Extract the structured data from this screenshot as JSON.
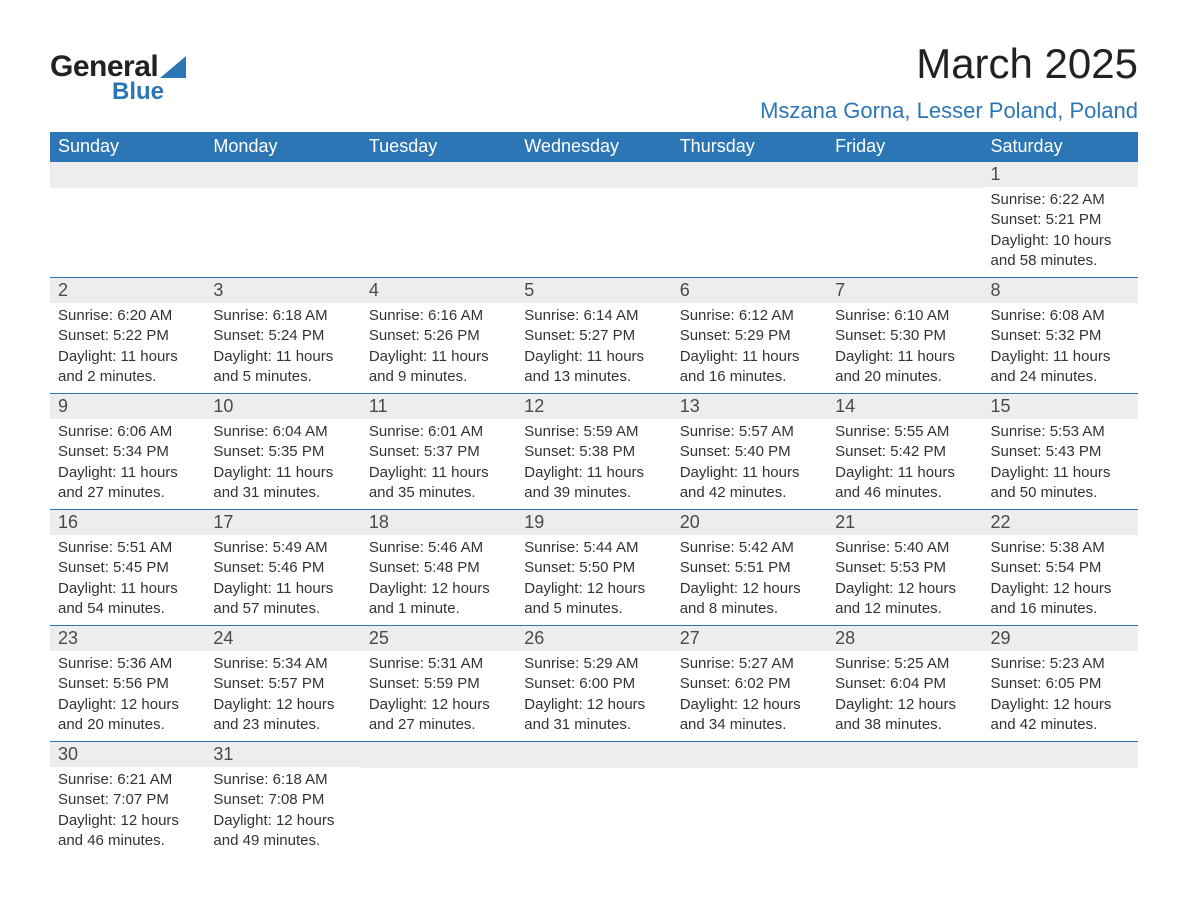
{
  "brand": {
    "word1": "General",
    "word2": "Blue"
  },
  "title": "March 2025",
  "location": "Mszana Gorna, Lesser Poland, Poland",
  "colors": {
    "header_bg": "#2d76b5",
    "header_text": "#ffffff",
    "daynum_bg": "#ededed",
    "text": "#333333",
    "accent": "#2d76b5"
  },
  "day_headers": [
    "Sunday",
    "Monday",
    "Tuesday",
    "Wednesday",
    "Thursday",
    "Friday",
    "Saturday"
  ],
  "weeks": [
    [
      null,
      null,
      null,
      null,
      null,
      null,
      {
        "n": "1",
        "sr": "Sunrise: 6:22 AM",
        "ss": "Sunset: 5:21 PM",
        "dl": "Daylight: 10 hours and 58 minutes."
      }
    ],
    [
      {
        "n": "2",
        "sr": "Sunrise: 6:20 AM",
        "ss": "Sunset: 5:22 PM",
        "dl": "Daylight: 11 hours and 2 minutes."
      },
      {
        "n": "3",
        "sr": "Sunrise: 6:18 AM",
        "ss": "Sunset: 5:24 PM",
        "dl": "Daylight: 11 hours and 5 minutes."
      },
      {
        "n": "4",
        "sr": "Sunrise: 6:16 AM",
        "ss": "Sunset: 5:26 PM",
        "dl": "Daylight: 11 hours and 9 minutes."
      },
      {
        "n": "5",
        "sr": "Sunrise: 6:14 AM",
        "ss": "Sunset: 5:27 PM",
        "dl": "Daylight: 11 hours and 13 minutes."
      },
      {
        "n": "6",
        "sr": "Sunrise: 6:12 AM",
        "ss": "Sunset: 5:29 PM",
        "dl": "Daylight: 11 hours and 16 minutes."
      },
      {
        "n": "7",
        "sr": "Sunrise: 6:10 AM",
        "ss": "Sunset: 5:30 PM",
        "dl": "Daylight: 11 hours and 20 minutes."
      },
      {
        "n": "8",
        "sr": "Sunrise: 6:08 AM",
        "ss": "Sunset: 5:32 PM",
        "dl": "Daylight: 11 hours and 24 minutes."
      }
    ],
    [
      {
        "n": "9",
        "sr": "Sunrise: 6:06 AM",
        "ss": "Sunset: 5:34 PM",
        "dl": "Daylight: 11 hours and 27 minutes."
      },
      {
        "n": "10",
        "sr": "Sunrise: 6:04 AM",
        "ss": "Sunset: 5:35 PM",
        "dl": "Daylight: 11 hours and 31 minutes."
      },
      {
        "n": "11",
        "sr": "Sunrise: 6:01 AM",
        "ss": "Sunset: 5:37 PM",
        "dl": "Daylight: 11 hours and 35 minutes."
      },
      {
        "n": "12",
        "sr": "Sunrise: 5:59 AM",
        "ss": "Sunset: 5:38 PM",
        "dl": "Daylight: 11 hours and 39 minutes."
      },
      {
        "n": "13",
        "sr": "Sunrise: 5:57 AM",
        "ss": "Sunset: 5:40 PM",
        "dl": "Daylight: 11 hours and 42 minutes."
      },
      {
        "n": "14",
        "sr": "Sunrise: 5:55 AM",
        "ss": "Sunset: 5:42 PM",
        "dl": "Daylight: 11 hours and 46 minutes."
      },
      {
        "n": "15",
        "sr": "Sunrise: 5:53 AM",
        "ss": "Sunset: 5:43 PM",
        "dl": "Daylight: 11 hours and 50 minutes."
      }
    ],
    [
      {
        "n": "16",
        "sr": "Sunrise: 5:51 AM",
        "ss": "Sunset: 5:45 PM",
        "dl": "Daylight: 11 hours and 54 minutes."
      },
      {
        "n": "17",
        "sr": "Sunrise: 5:49 AM",
        "ss": "Sunset: 5:46 PM",
        "dl": "Daylight: 11 hours and 57 minutes."
      },
      {
        "n": "18",
        "sr": "Sunrise: 5:46 AM",
        "ss": "Sunset: 5:48 PM",
        "dl": "Daylight: 12 hours and 1 minute."
      },
      {
        "n": "19",
        "sr": "Sunrise: 5:44 AM",
        "ss": "Sunset: 5:50 PM",
        "dl": "Daylight: 12 hours and 5 minutes."
      },
      {
        "n": "20",
        "sr": "Sunrise: 5:42 AM",
        "ss": "Sunset: 5:51 PM",
        "dl": "Daylight: 12 hours and 8 minutes."
      },
      {
        "n": "21",
        "sr": "Sunrise: 5:40 AM",
        "ss": "Sunset: 5:53 PM",
        "dl": "Daylight: 12 hours and 12 minutes."
      },
      {
        "n": "22",
        "sr": "Sunrise: 5:38 AM",
        "ss": "Sunset: 5:54 PM",
        "dl": "Daylight: 12 hours and 16 minutes."
      }
    ],
    [
      {
        "n": "23",
        "sr": "Sunrise: 5:36 AM",
        "ss": "Sunset: 5:56 PM",
        "dl": "Daylight: 12 hours and 20 minutes."
      },
      {
        "n": "24",
        "sr": "Sunrise: 5:34 AM",
        "ss": "Sunset: 5:57 PM",
        "dl": "Daylight: 12 hours and 23 minutes."
      },
      {
        "n": "25",
        "sr": "Sunrise: 5:31 AM",
        "ss": "Sunset: 5:59 PM",
        "dl": "Daylight: 12 hours and 27 minutes."
      },
      {
        "n": "26",
        "sr": "Sunrise: 5:29 AM",
        "ss": "Sunset: 6:00 PM",
        "dl": "Daylight: 12 hours and 31 minutes."
      },
      {
        "n": "27",
        "sr": "Sunrise: 5:27 AM",
        "ss": "Sunset: 6:02 PM",
        "dl": "Daylight: 12 hours and 34 minutes."
      },
      {
        "n": "28",
        "sr": "Sunrise: 5:25 AM",
        "ss": "Sunset: 6:04 PM",
        "dl": "Daylight: 12 hours and 38 minutes."
      },
      {
        "n": "29",
        "sr": "Sunrise: 5:23 AM",
        "ss": "Sunset: 6:05 PM",
        "dl": "Daylight: 12 hours and 42 minutes."
      }
    ],
    [
      {
        "n": "30",
        "sr": "Sunrise: 6:21 AM",
        "ss": "Sunset: 7:07 PM",
        "dl": "Daylight: 12 hours and 46 minutes."
      },
      {
        "n": "31",
        "sr": "Sunrise: 6:18 AM",
        "ss": "Sunset: 7:08 PM",
        "dl": "Daylight: 12 hours and 49 minutes."
      },
      null,
      null,
      null,
      null,
      null
    ]
  ]
}
